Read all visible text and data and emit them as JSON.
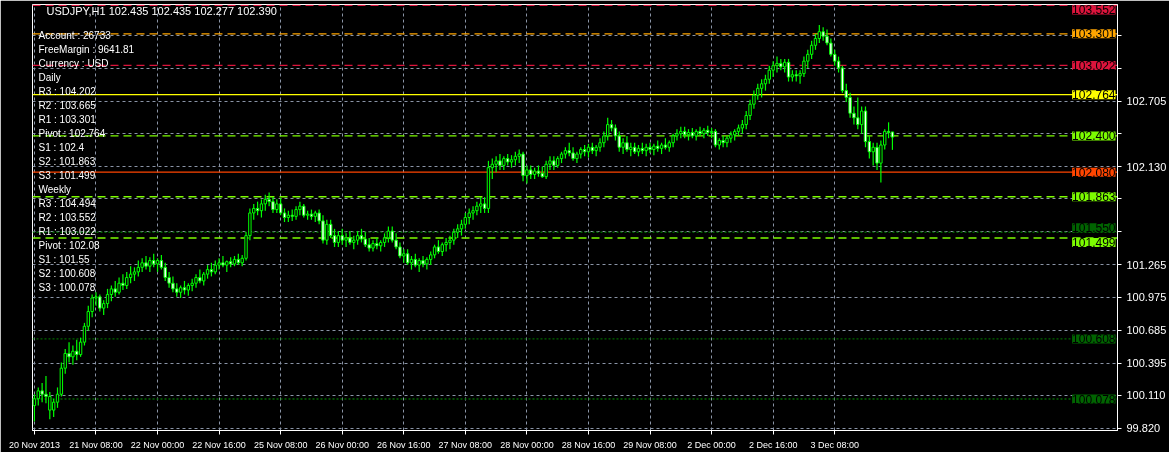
{
  "chart_data": {
    "type": "candlestick",
    "title": "USDJPY,H1  102.435 102.435 102.277 102.390",
    "color": "#00ff00",
    "grid": true,
    "ylim": [
      99.8,
      103.56
    ],
    "yticks": [
      {
        "value": 99.82,
        "label": "99.820"
      },
      {
        "value": 100.11,
        "label": "100.110"
      },
      {
        "value": 100.395,
        "label": "100.395"
      },
      {
        "value": 100.685,
        "label": "100.685"
      },
      {
        "value": 100.975,
        "label": "100.975"
      },
      {
        "value": 101.265,
        "label": "101.265"
      },
      {
        "value": 101.555,
        "label": null
      },
      {
        "value": 101.845,
        "label": null
      },
      {
        "value": 102.13,
        "label": "102.130"
      },
      {
        "value": 102.42,
        "label": null
      },
      {
        "value": 102.705,
        "label": "102.705"
      },
      {
        "value": 102.995,
        "label": null
      },
      {
        "value": 103.285,
        "label": null
      }
    ],
    "annotations": [
      "Account      : 26733",
      "FreeMargin  : 9641.81",
      "Currency     : USD",
      "Daily",
      "R3     : 104.202",
      "R2     : 103.665",
      "R1     : 103.301",
      "Pivot  : 102.764",
      "S1     : 102.4",
      "S2     : 101.863",
      "S3     : 101.499",
      "Weekly",
      "R3     : 104.494",
      "R2     : 103.552",
      "R1     : 103.022",
      "Pivot  : 102.08",
      "S1     : 101.55",
      "S2     : 100.608",
      "S3     : 100.078"
    ],
    "ref_lines": [
      {
        "axis": "y",
        "value": 103.552,
        "label": "103.552",
        "color": "#dc143c",
        "line_style": "dashed"
      },
      {
        "axis": "y",
        "value": 103.301,
        "label": "103.301",
        "color": "#ffa500",
        "line_style": "dashed"
      },
      {
        "axis": "y",
        "value": 103.022,
        "label": "103.022",
        "color": "#dc143c",
        "line_style": "dashed"
      },
      {
        "axis": "y",
        "value": 102.764,
        "label": "102.764",
        "color": "#ffff00",
        "line_style": "solid"
      },
      {
        "axis": "y",
        "value": 102.4,
        "label": "102.400",
        "color": "#7cfc00",
        "line_style": "dashed"
      },
      {
        "axis": "y",
        "value": 102.08,
        "label": "102.080",
        "color": "#ff4500",
        "line_style": "solid"
      },
      {
        "axis": "y",
        "value": 101.863,
        "label": "101.863",
        "color": "#7cfc00",
        "line_style": "dashed"
      },
      {
        "axis": "y",
        "value": 101.55,
        "label": "101.550",
        "color": "#006400",
        "line_style": "dotted"
      },
      {
        "axis": "y",
        "value": 101.499,
        "label": "101.499",
        "color": "#7cfc00",
        "line_style": "dashed"
      },
      {
        "axis": "y",
        "value": 100.608,
        "label": "100.608",
        "color": "#006400",
        "line_style": "dotted"
      },
      {
        "axis": "y",
        "value": 100.078,
        "label": "100.078",
        "color": "#006400",
        "line_style": "dotted"
      }
    ],
    "categories": [
      "20 Nov 2013",
      null,
      null,
      null,
      null,
      null,
      null,
      null,
      null,
      null,
      null,
      null,
      null,
      null,
      null,
      null,
      "21 Nov 08:00",
      null,
      null,
      null,
      null,
      null,
      null,
      null,
      null,
      null,
      null,
      null,
      null,
      null,
      null,
      null,
      "22 Nov 00:00",
      null,
      null,
      null,
      null,
      null,
      null,
      null,
      null,
      null,
      null,
      null,
      null,
      null,
      null,
      null,
      "22 Nov 16:00",
      null,
      null,
      null,
      null,
      null,
      null,
      null,
      null,
      null,
      null,
      null,
      null,
      null,
      null,
      null,
      "25 Nov 08:00",
      null,
      null,
      null,
      null,
      null,
      null,
      null,
      null,
      null,
      null,
      null,
      null,
      null,
      null,
      null,
      "26 Nov 00:00",
      null,
      null,
      null,
      null,
      null,
      null,
      null,
      null,
      null,
      null,
      null,
      null,
      null,
      null,
      null,
      "26 Nov 16:00",
      null,
      null,
      null,
      null,
      null,
      null,
      null,
      null,
      null,
      null,
      null,
      null,
      null,
      null,
      null,
      "27 Nov 08:00",
      null,
      null,
      null,
      null,
      null,
      null,
      null,
      null,
      null,
      null,
      null,
      null,
      null,
      null,
      null,
      "28 Nov 00:00",
      null,
      null,
      null,
      null,
      null,
      null,
      null,
      null,
      null,
      null,
      null,
      null,
      null,
      null,
      null,
      "28 Nov 16:00",
      null,
      null,
      null,
      null,
      null,
      null,
      null,
      null,
      null,
      null,
      null,
      null,
      null,
      null,
      null,
      "29 Nov 08:00",
      null,
      null,
      null,
      null,
      null,
      null,
      null,
      null,
      null,
      null,
      null,
      null,
      null,
      null,
      null,
      "2 Dec 00:00",
      null,
      null,
      null,
      null,
      null,
      null,
      null,
      null,
      null,
      null,
      null,
      null,
      null,
      null,
      null,
      "2 Dec 16:00",
      null,
      null,
      null,
      null,
      null,
      null,
      null,
      null,
      null,
      null,
      null,
      null,
      null,
      null,
      null,
      "3 Dec 08:00",
      null,
      null,
      null,
      null,
      null,
      null,
      null,
      null,
      null,
      null,
      null,
      null,
      null,
      null,
      null,
      null,
      null,
      null,
      null,
      null,
      null,
      null,
      null,
      null,
      null,
      null,
      null,
      null,
      null,
      null,
      null,
      null,
      null,
      null,
      null,
      null,
      null,
      null,
      null,
      null,
      null,
      null,
      null,
      null,
      null,
      null,
      null,
      null,
      null,
      null,
      null,
      null,
      null,
      null,
      null,
      null,
      null,
      null,
      null,
      null,
      null,
      null,
      null,
      null,
      null,
      null,
      null,
      null,
      null,
      null,
      null,
      null,
      null
    ],
    "ohlc": [
      [
        100.02,
        100.12,
        99.88,
        100.08
      ],
      [
        100.08,
        100.18,
        100.02,
        100.15
      ],
      [
        100.15,
        100.22,
        100.05,
        100.12
      ],
      [
        100.12,
        100.28,
        100.04,
        100.1
      ],
      [
        99.98,
        100.14,
        99.9,
        100.1
      ],
      [
        99.98,
        100.08,
        99.92,
        100.05
      ],
      [
        100.05,
        100.18,
        100.0,
        100.12
      ],
      [
        100.12,
        100.4,
        100.1,
        100.35
      ],
      [
        100.35,
        100.52,
        100.3,
        100.48
      ],
      [
        100.48,
        100.58,
        100.4,
        100.45
      ],
      [
        100.45,
        100.55,
        100.38,
        100.5
      ],
      [
        100.5,
        100.6,
        100.42,
        100.47
      ],
      [
        100.47,
        100.62,
        100.45,
        100.58
      ],
      [
        100.58,
        100.75,
        100.55,
        100.72
      ],
      [
        100.72,
        100.9,
        100.68,
        100.85
      ],
      [
        100.85,
        101.0,
        100.8,
        100.97
      ],
      [
        100.97,
        101.02,
        100.9,
        100.98
      ],
      [
        100.98,
        101.0,
        100.85,
        100.88
      ],
      [
        100.88,
        100.95,
        100.82,
        100.92
      ],
      [
        100.92,
        101.05,
        100.88,
        101.0
      ],
      [
        101.0,
        101.08,
        100.94,
        101.05
      ],
      [
        101.05,
        101.12,
        100.98,
        101.02
      ],
      [
        101.02,
        101.15,
        101.0,
        101.1
      ],
      [
        101.1,
        101.18,
        101.04,
        101.08
      ],
      [
        101.08,
        101.2,
        101.05,
        101.15
      ],
      [
        101.15,
        101.25,
        101.1,
        101.18
      ],
      [
        101.18,
        101.24,
        101.12,
        101.2
      ],
      [
        101.2,
        101.3,
        101.16,
        101.24
      ],
      [
        101.24,
        101.32,
        101.2,
        101.28
      ],
      [
        101.28,
        101.34,
        101.22,
        101.25
      ],
      [
        101.25,
        101.33,
        101.2,
        101.3
      ],
      [
        101.3,
        101.36,
        101.24,
        101.27
      ],
      [
        101.27,
        101.32,
        101.2,
        101.3
      ],
      [
        101.3,
        101.35,
        101.22,
        101.24
      ],
      [
        101.24,
        101.28,
        101.12,
        101.15
      ],
      [
        101.15,
        101.2,
        101.06,
        101.1
      ],
      [
        101.1,
        101.16,
        101.02,
        101.05
      ],
      [
        101.05,
        101.1,
        100.98,
        101.02
      ],
      [
        101.02,
        101.08,
        100.97,
        101.06
      ],
      [
        101.06,
        101.12,
        101.0,
        101.04
      ],
      [
        101.04,
        101.1,
        100.99,
        101.08
      ],
      [
        101.08,
        101.14,
        101.03,
        101.1
      ],
      [
        101.1,
        101.18,
        101.06,
        101.15
      ],
      [
        101.15,
        101.22,
        101.1,
        101.12
      ],
      [
        101.12,
        101.2,
        101.08,
        101.18
      ],
      [
        101.18,
        101.26,
        101.14,
        101.22
      ],
      [
        101.22,
        101.28,
        101.16,
        101.2
      ],
      [
        101.2,
        101.3,
        101.18,
        101.26
      ],
      [
        101.26,
        101.32,
        101.22,
        101.28
      ],
      [
        101.28,
        101.34,
        101.24,
        101.26
      ],
      [
        101.26,
        101.3,
        101.2,
        101.29
      ],
      [
        101.29,
        101.33,
        101.24,
        101.27
      ],
      [
        101.27,
        101.34,
        101.25,
        101.31
      ],
      [
        101.31,
        101.36,
        101.26,
        101.28
      ],
      [
        101.28,
        101.35,
        101.25,
        101.32
      ],
      [
        101.32,
        101.55,
        101.3,
        101.52
      ],
      [
        101.52,
        101.76,
        101.48,
        101.72
      ],
      [
        101.72,
        101.8,
        101.66,
        101.76
      ],
      [
        101.76,
        101.82,
        101.7,
        101.74
      ],
      [
        101.74,
        101.84,
        101.68,
        101.8
      ],
      [
        101.8,
        101.88,
        101.74,
        101.84
      ],
      [
        101.84,
        101.9,
        101.78,
        101.82
      ],
      [
        101.82,
        101.86,
        101.72,
        101.75
      ],
      [
        101.75,
        101.84,
        101.72,
        101.8
      ],
      [
        101.8,
        101.85,
        101.7,
        101.72
      ],
      [
        101.72,
        101.76,
        101.64,
        101.68
      ],
      [
        101.68,
        101.74,
        101.64,
        101.7
      ],
      [
        101.7,
        101.75,
        101.65,
        101.69
      ],
      [
        101.69,
        101.78,
        101.66,
        101.75
      ],
      [
        101.75,
        101.82,
        101.7,
        101.78
      ],
      [
        101.78,
        101.8,
        101.68,
        101.7
      ],
      [
        101.7,
        101.74,
        101.66,
        101.71
      ],
      [
        101.71,
        101.75,
        101.66,
        101.69
      ],
      [
        101.69,
        101.74,
        101.64,
        101.72
      ],
      [
        101.72,
        101.75,
        101.62,
        101.65
      ],
      [
        101.65,
        101.7,
        101.45,
        101.48
      ],
      [
        101.48,
        101.66,
        101.44,
        101.62
      ],
      [
        101.62,
        101.66,
        101.5,
        101.52
      ],
      [
        101.52,
        101.58,
        101.42,
        101.46
      ],
      [
        101.46,
        101.56,
        101.42,
        101.52
      ],
      [
        101.52,
        101.58,
        101.44,
        101.48
      ],
      [
        101.48,
        101.54,
        101.42,
        101.5
      ],
      [
        101.5,
        101.56,
        101.44,
        101.46
      ],
      [
        101.46,
        101.52,
        101.4,
        101.48
      ],
      [
        101.48,
        101.56,
        101.44,
        101.52
      ],
      [
        101.52,
        101.58,
        101.46,
        101.49
      ],
      [
        101.49,
        101.55,
        101.42,
        101.44
      ],
      [
        101.44,
        101.5,
        101.38,
        101.41
      ],
      [
        101.41,
        101.48,
        101.38,
        101.45
      ],
      [
        101.45,
        101.5,
        101.4,
        101.43
      ],
      [
        101.43,
        101.48,
        101.38,
        101.46
      ],
      [
        101.46,
        101.54,
        101.42,
        101.5
      ],
      [
        101.5,
        101.6,
        101.46,
        101.56
      ],
      [
        101.56,
        101.6,
        101.46,
        101.48
      ],
      [
        101.48,
        101.54,
        101.4,
        101.42
      ],
      [
        101.42,
        101.46,
        101.32,
        101.34
      ],
      [
        101.34,
        101.4,
        101.28,
        101.36
      ],
      [
        101.36,
        101.4,
        101.26,
        101.28
      ],
      [
        101.28,
        101.34,
        101.22,
        101.31
      ],
      [
        101.31,
        101.36,
        101.24,
        101.26
      ],
      [
        101.26,
        101.32,
        101.2,
        101.3
      ],
      [
        101.3,
        101.34,
        101.24,
        101.27
      ],
      [
        101.27,
        101.33,
        101.22,
        101.31
      ],
      [
        101.31,
        101.38,
        101.26,
        101.35
      ],
      [
        101.35,
        101.44,
        101.32,
        101.42
      ],
      [
        101.42,
        101.48,
        101.36,
        101.38
      ],
      [
        101.38,
        101.46,
        101.34,
        101.44
      ],
      [
        101.44,
        101.5,
        101.38,
        101.46
      ],
      [
        101.46,
        101.52,
        101.4,
        101.48
      ],
      [
        101.48,
        101.58,
        101.44,
        101.55
      ],
      [
        101.55,
        101.62,
        101.5,
        101.58
      ],
      [
        101.58,
        101.66,
        101.52,
        101.62
      ],
      [
        101.62,
        101.72,
        101.58,
        101.68
      ],
      [
        101.68,
        101.76,
        101.62,
        101.72
      ],
      [
        101.72,
        101.78,
        101.66,
        101.74
      ],
      [
        101.74,
        101.82,
        101.7,
        101.78
      ],
      [
        101.78,
        101.86,
        101.72,
        101.8
      ],
      [
        101.8,
        101.86,
        101.72,
        101.76
      ],
      [
        101.76,
        102.18,
        101.72,
        102.12
      ],
      [
        102.12,
        102.2,
        102.02,
        102.15
      ],
      [
        102.15,
        102.22,
        102.08,
        102.18
      ],
      [
        102.18,
        102.24,
        102.1,
        102.14
      ],
      [
        102.14,
        102.22,
        102.1,
        102.2
      ],
      [
        102.2,
        102.24,
        102.14,
        102.17
      ],
      [
        102.17,
        102.23,
        102.12,
        102.19
      ],
      [
        102.19,
        102.26,
        102.14,
        102.22
      ],
      [
        102.22,
        102.28,
        102.16,
        102.24
      ],
      [
        102.24,
        102.26,
        102.0,
        102.05
      ],
      [
        102.05,
        102.14,
        101.98,
        102.1
      ],
      [
        102.1,
        102.14,
        102.02,
        102.06
      ],
      [
        102.06,
        102.12,
        102.02,
        102.09
      ],
      [
        102.09,
        102.14,
        102.04,
        102.07
      ],
      [
        102.07,
        102.13,
        102.03,
        102.04
      ],
      [
        102.04,
        102.18,
        102.02,
        102.15
      ],
      [
        102.15,
        102.22,
        102.1,
        102.18
      ],
      [
        102.18,
        102.22,
        102.1,
        102.14
      ],
      [
        102.14,
        102.22,
        102.12,
        102.2
      ],
      [
        102.2,
        102.26,
        102.16,
        102.24
      ],
      [
        102.24,
        102.3,
        102.2,
        102.27
      ],
      [
        102.27,
        102.34,
        102.22,
        102.25
      ],
      [
        102.25,
        102.3,
        102.18,
        102.2
      ],
      [
        102.2,
        102.26,
        102.16,
        102.24
      ],
      [
        102.24,
        102.3,
        102.2,
        102.28
      ],
      [
        102.28,
        102.32,
        102.22,
        102.26
      ],
      [
        102.26,
        102.33,
        102.21,
        102.3
      ],
      [
        102.3,
        102.34,
        102.24,
        102.27
      ],
      [
        102.27,
        102.32,
        102.22,
        102.3
      ],
      [
        102.3,
        102.38,
        102.26,
        102.34
      ],
      [
        102.34,
        102.44,
        102.3,
        102.4
      ],
      [
        102.4,
        102.56,
        102.36,
        102.5
      ],
      [
        102.5,
        102.54,
        102.44,
        102.47
      ],
      [
        102.47,
        102.5,
        102.36,
        102.4
      ],
      [
        102.4,
        102.44,
        102.26,
        102.3
      ],
      [
        102.3,
        102.38,
        102.24,
        102.34
      ],
      [
        102.34,
        102.4,
        102.26,
        102.28
      ],
      [
        102.28,
        102.34,
        102.22,
        102.3
      ],
      [
        102.3,
        102.34,
        102.24,
        102.26
      ],
      [
        102.26,
        102.32,
        102.22,
        102.29
      ],
      [
        102.29,
        102.34,
        102.24,
        102.27
      ],
      [
        102.27,
        102.33,
        102.22,
        102.3
      ],
      [
        102.3,
        102.34,
        102.25,
        102.28
      ],
      [
        102.28,
        102.33,
        102.23,
        102.31
      ],
      [
        102.31,
        102.36,
        102.26,
        102.29
      ],
      [
        102.29,
        102.34,
        102.24,
        102.32
      ],
      [
        102.32,
        102.38,
        102.28,
        102.3
      ],
      [
        102.3,
        102.36,
        102.26,
        102.34
      ],
      [
        102.34,
        102.42,
        102.3,
        102.4
      ],
      [
        102.4,
        102.46,
        102.36,
        102.42
      ],
      [
        102.42,
        102.48,
        102.38,
        102.44
      ],
      [
        102.44,
        102.48,
        102.38,
        102.41
      ],
      [
        102.41,
        102.46,
        102.36,
        102.43
      ],
      [
        102.43,
        102.47,
        102.38,
        102.4
      ],
      [
        102.4,
        102.46,
        102.36,
        102.44
      ],
      [
        102.44,
        102.48,
        102.4,
        102.42
      ],
      [
        102.42,
        102.47,
        102.38,
        102.45
      ],
      [
        102.45,
        102.49,
        102.4,
        102.43
      ],
      [
        102.43,
        102.47,
        102.38,
        102.44
      ],
      [
        102.44,
        102.46,
        102.3,
        102.32
      ],
      [
        102.32,
        102.38,
        102.28,
        102.36
      ],
      [
        102.36,
        102.4,
        102.3,
        102.34
      ],
      [
        102.34,
        102.4,
        102.3,
        102.38
      ],
      [
        102.38,
        102.44,
        102.34,
        102.41
      ],
      [
        102.41,
        102.46,
        102.36,
        102.44
      ],
      [
        102.44,
        102.5,
        102.4,
        102.47
      ],
      [
        102.47,
        102.54,
        102.42,
        102.5
      ],
      [
        102.5,
        102.62,
        102.46,
        102.58
      ],
      [
        102.58,
        102.72,
        102.54,
        102.68
      ],
      [
        102.68,
        102.8,
        102.64,
        102.76
      ],
      [
        102.76,
        102.86,
        102.72,
        102.82
      ],
      [
        102.82,
        102.9,
        102.74,
        102.86
      ],
      [
        102.86,
        102.94,
        102.8,
        102.9
      ],
      [
        102.9,
        103.02,
        102.86,
        102.98
      ],
      [
        102.98,
        103.06,
        102.92,
        103.02
      ],
      [
        103.02,
        103.1,
        102.96,
        103.04
      ],
      [
        103.04,
        103.08,
        102.98,
        103.01
      ],
      [
        103.01,
        103.08,
        102.96,
        103.05
      ],
      [
        103.05,
        103.08,
        102.88,
        102.92
      ],
      [
        102.92,
        102.98,
        102.88,
        102.94
      ],
      [
        102.94,
        102.98,
        102.88,
        102.93
      ],
      [
        102.93,
        102.98,
        102.86,
        102.95
      ],
      [
        102.95,
        103.1,
        102.92,
        103.06
      ],
      [
        103.06,
        103.16,
        103.0,
        103.12
      ],
      [
        103.12,
        103.24,
        103.08,
        103.2
      ],
      [
        103.2,
        103.3,
        103.16,
        103.26
      ],
      [
        103.26,
        103.38,
        103.22,
        103.32
      ],
      [
        103.32,
        103.36,
        103.24,
        103.28
      ],
      [
        103.28,
        103.34,
        103.2,
        103.22
      ],
      [
        103.22,
        103.26,
        103.1,
        103.12
      ],
      [
        103.12,
        103.16,
        103.02,
        103.06
      ],
      [
        103.06,
        103.1,
        102.96,
        103.0
      ],
      [
        103.0,
        103.02,
        102.78,
        102.8
      ],
      [
        102.8,
        102.86,
        102.7,
        102.74
      ],
      [
        102.74,
        102.78,
        102.56,
        102.6
      ],
      [
        102.6,
        102.66,
        102.5,
        102.56
      ],
      [
        102.56,
        102.74,
        102.46,
        102.5
      ],
      [
        102.5,
        102.66,
        102.42,
        102.62
      ],
      [
        102.62,
        102.66,
        102.3,
        102.35
      ],
      [
        102.35,
        102.4,
        102.2,
        102.26
      ],
      [
        102.26,
        102.34,
        102.14,
        102.3
      ],
      [
        102.3,
        102.34,
        102.1,
        102.16
      ],
      [
        102.16,
        102.36,
        101.99,
        102.32
      ],
      [
        102.32,
        102.46,
        102.28,
        102.44
      ],
      [
        102.44,
        102.52,
        102.38,
        102.43
      ],
      [
        102.435,
        102.435,
        102.277,
        102.39
      ],
      null,
      null,
      null,
      null,
      null,
      null,
      null,
      null,
      null,
      null,
      null,
      null,
      null,
      null,
      null,
      null,
      null,
      null,
      null,
      null,
      null,
      null,
      null,
      null,
      null,
      null,
      null,
      null,
      null,
      null,
      null,
      null,
      null,
      null,
      null,
      null,
      null,
      null,
      null,
      null,
      null,
      null,
      null,
      null,
      null,
      null,
      null,
      null,
      null,
      null,
      null,
      null,
      null,
      null,
      null,
      null,
      null,
      null
    ]
  }
}
